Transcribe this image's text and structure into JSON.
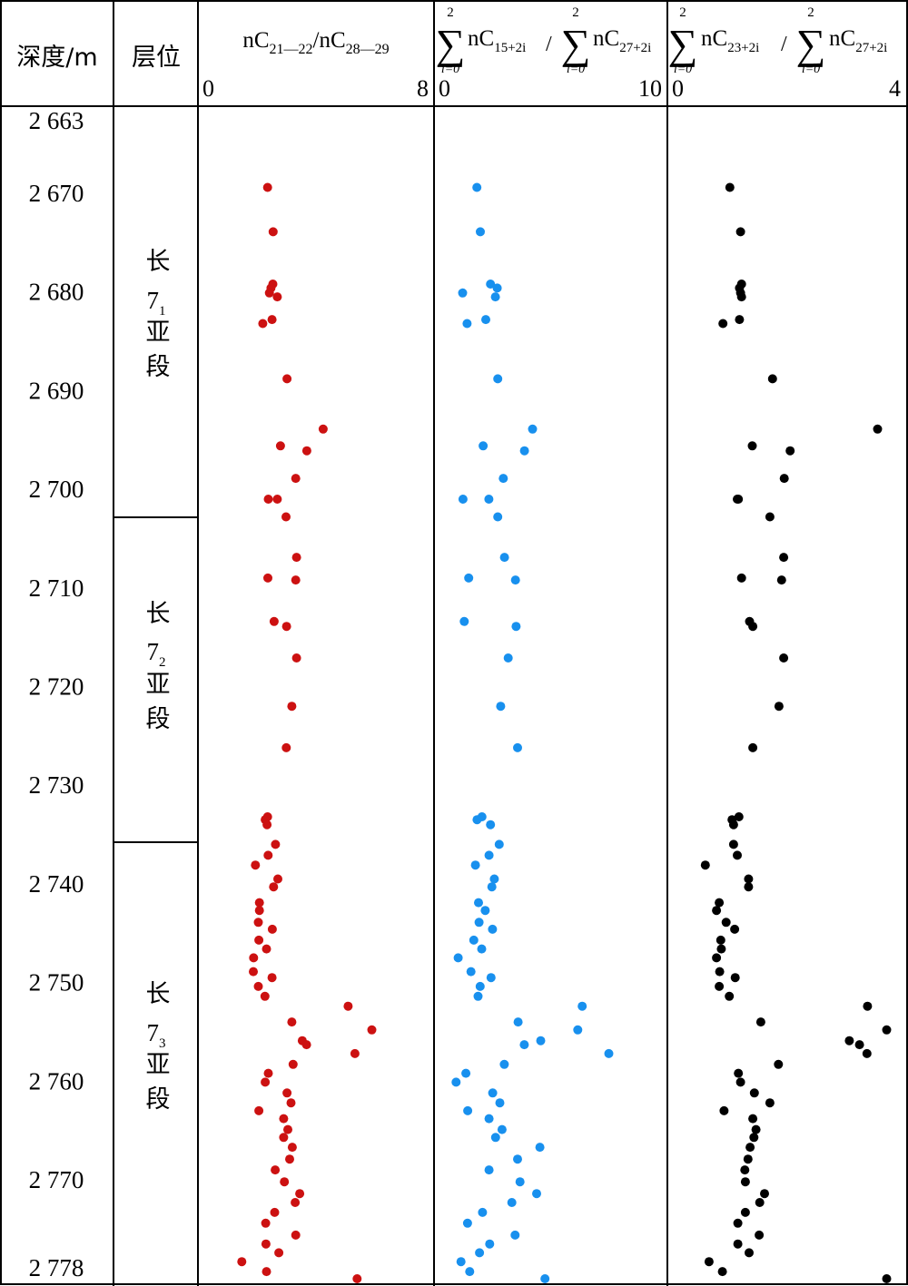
{
  "header": {
    "depth_label": "深度/m",
    "layer_label": "层位",
    "col1": {
      "pre": "nC",
      "sub1": "21—22",
      "mid": "/nC",
      "sub2": "28—29",
      "min_label": "0",
      "max_label": "8"
    },
    "col2": {
      "sum_sym": "∑",
      "sum_top": "2",
      "sum_bottom": "i=0",
      "num_base": "nC",
      "num_sub": "15+2i",
      "slash": "/",
      "den_base": "nC",
      "den_sub": "27+2i",
      "min_label": "0",
      "max_label": "10"
    },
    "col3": {
      "sum_sym": "∑",
      "sum_top": "2",
      "sum_bottom": "i=0",
      "num_base": "nC",
      "num_sub": "23+2i",
      "slash": "/",
      "den_base": "nC",
      "den_sub": "27+2i",
      "min_label": "0",
      "max_label": "4"
    }
  },
  "layers": [
    {
      "top": 2663,
      "bottom": 2703,
      "char1": "长",
      "main": "7",
      "sub": "1",
      "char3": "亚",
      "char4": "段"
    },
    {
      "top": 2703,
      "bottom": 2736,
      "char1": "长",
      "main": "7",
      "sub": "2",
      "char3": "亚",
      "char4": "段"
    },
    {
      "top": 2736,
      "bottom": 2778,
      "char1": "长",
      "main": "7",
      "sub": "3",
      "char3": "亚",
      "char4": "段"
    }
  ],
  "chart_data": {
    "type": "scatter",
    "depth_axis": {
      "min": 2663,
      "max": 2778,
      "inverted": true,
      "ticks": [
        2663,
        2670,
        2680,
        2690,
        2700,
        2710,
        2720,
        2730,
        2740,
        2750,
        2760,
        2770,
        2778
      ],
      "tick_labels": [
        "2 663",
        "2 670",
        "2 680",
        "2 690",
        "2 700",
        "2 710",
        "2 720",
        "2 730",
        "2 740",
        "2 750",
        "2 760",
        "2 770",
        "2 778"
      ]
    },
    "series": [
      {
        "x_range": [
          0,
          8
        ],
        "color": "#cc1111",
        "points": [
          [
            2669.4,
            2.23
          ],
          [
            2673.9,
            2.44
          ],
          [
            2679.2,
            2.43
          ],
          [
            2679.6,
            2.36
          ],
          [
            2680.1,
            2.3
          ],
          [
            2680.5,
            2.6
          ],
          [
            2682.8,
            2.4
          ],
          [
            2683.2,
            2.05
          ],
          [
            2688.8,
            2.97
          ],
          [
            2693.9,
            4.34
          ],
          [
            2695.6,
            2.72
          ],
          [
            2696.1,
            3.72
          ],
          [
            2698.9,
            3.3
          ],
          [
            2701.0,
            2.26
          ],
          [
            2701.0,
            2.6
          ],
          [
            2702.8,
            2.93
          ],
          [
            2706.9,
            3.33
          ],
          [
            2709.0,
            2.24
          ],
          [
            2709.2,
            3.3
          ],
          [
            2713.4,
            2.48
          ],
          [
            2713.9,
            2.95
          ],
          [
            2717.1,
            3.33
          ],
          [
            2722.0,
            3.15
          ],
          [
            2726.2,
            2.94
          ],
          [
            2733.5,
            2.14
          ],
          [
            2733.2,
            2.23
          ],
          [
            2734.0,
            2.21
          ],
          [
            2736.0,
            2.53
          ],
          [
            2737.1,
            2.25
          ],
          [
            2738.1,
            1.77
          ],
          [
            2739.5,
            2.62
          ],
          [
            2740.3,
            2.46
          ],
          [
            2741.9,
            1.92
          ],
          [
            2742.7,
            1.92
          ],
          [
            2743.9,
            1.88
          ],
          [
            2744.6,
            2.41
          ],
          [
            2745.7,
            1.9
          ],
          [
            2746.6,
            2.19
          ],
          [
            2747.5,
            1.7
          ],
          [
            2748.9,
            1.69
          ],
          [
            2749.5,
            2.4
          ],
          [
            2750.4,
            1.88
          ],
          [
            2751.4,
            2.13
          ],
          [
            2752.4,
            5.29
          ],
          [
            2754.0,
            3.15
          ],
          [
            2754.8,
            6.19
          ],
          [
            2755.9,
            3.55
          ],
          [
            2756.3,
            3.71
          ],
          [
            2757.2,
            5.55
          ],
          [
            2758.3,
            3.2
          ],
          [
            2759.2,
            2.26
          ],
          [
            2760.1,
            2.14
          ],
          [
            2761.2,
            2.97
          ],
          [
            2762.2,
            3.12
          ],
          [
            2763.0,
            1.9
          ],
          [
            2763.8,
            2.84
          ],
          [
            2764.9,
            3.0
          ],
          [
            2765.7,
            2.84
          ],
          [
            2766.7,
            3.17
          ],
          [
            2767.9,
            3.07
          ],
          [
            2769.0,
            2.52
          ],
          [
            2770.2,
            2.87
          ],
          [
            2771.4,
            3.45
          ],
          [
            2772.3,
            3.28
          ],
          [
            2773.3,
            2.5
          ],
          [
            2774.4,
            2.16
          ],
          [
            2775.6,
            3.3
          ],
          [
            2776.5,
            2.17
          ],
          [
            2777.4,
            2.66
          ],
          [
            2778.3,
            1.25
          ],
          [
            2779.3,
            2.19
          ],
          [
            2780.1,
            5.63
          ]
        ]
      },
      {
        "x_range": [
          0,
          10
        ],
        "color": "#1890ee",
        "points": [
          [
            2669.4,
            1.57
          ],
          [
            2673.9,
            1.74
          ],
          [
            2679.2,
            2.24
          ],
          [
            2679.6,
            2.57
          ],
          [
            2680.1,
            0.87
          ],
          [
            2680.5,
            2.48
          ],
          [
            2682.8,
            2.01
          ],
          [
            2683.2,
            1.09
          ],
          [
            2688.8,
            2.6
          ],
          [
            2693.9,
            4.31
          ],
          [
            2695.6,
            1.88
          ],
          [
            2696.1,
            3.91
          ],
          [
            2698.9,
            2.87
          ],
          [
            2701.0,
            0.89
          ],
          [
            2701.0,
            2.16
          ],
          [
            2702.8,
            2.6
          ],
          [
            2706.9,
            2.93
          ],
          [
            2709.0,
            1.17
          ],
          [
            2709.2,
            3.47
          ],
          [
            2713.4,
            0.95
          ],
          [
            2713.9,
            3.5
          ],
          [
            2717.1,
            3.11
          ],
          [
            2722.0,
            2.74
          ],
          [
            2726.2,
            3.57
          ],
          [
            2733.5,
            1.58
          ],
          [
            2733.2,
            1.82
          ],
          [
            2734.0,
            2.24
          ],
          [
            2736.0,
            2.67
          ],
          [
            2737.1,
            2.17
          ],
          [
            2738.1,
            1.5
          ],
          [
            2739.5,
            2.43
          ],
          [
            2740.3,
            2.31
          ],
          [
            2741.9,
            1.65
          ],
          [
            2742.7,
            1.98
          ],
          [
            2743.9,
            1.68
          ],
          [
            2744.6,
            2.34
          ],
          [
            2745.7,
            1.42
          ],
          [
            2746.6,
            1.81
          ],
          [
            2747.5,
            0.65
          ],
          [
            2748.9,
            1.28
          ],
          [
            2749.5,
            2.27
          ],
          [
            2750.4,
            1.73
          ],
          [
            2751.4,
            1.63
          ],
          [
            2752.4,
            6.75
          ],
          [
            2754.0,
            3.6
          ],
          [
            2754.8,
            6.53
          ],
          [
            2755.9,
            4.71
          ],
          [
            2756.3,
            3.9
          ],
          [
            2757.2,
            8.06
          ],
          [
            2758.3,
            2.92
          ],
          [
            2759.2,
            1.03
          ],
          [
            2760.1,
            0.55
          ],
          [
            2761.2,
            2.35
          ],
          [
            2762.2,
            2.7
          ],
          [
            2763.0,
            1.12
          ],
          [
            2763.8,
            2.17
          ],
          [
            2764.9,
            2.81
          ],
          [
            2765.7,
            2.49
          ],
          [
            2766.7,
            4.67
          ],
          [
            2767.9,
            3.57
          ],
          [
            2769.0,
            2.17
          ],
          [
            2770.2,
            3.69
          ],
          [
            2771.4,
            4.51
          ],
          [
            2772.3,
            3.29
          ],
          [
            2773.3,
            1.85
          ],
          [
            2774.4,
            1.11
          ],
          [
            2775.6,
            3.45
          ],
          [
            2776.5,
            2.2
          ],
          [
            2777.4,
            1.7
          ],
          [
            2778.3,
            0.79
          ],
          [
            2779.3,
            1.22
          ],
          [
            2780.1,
            4.92
          ]
        ]
      },
      {
        "x_range": [
          0,
          4
        ],
        "color": "#000000",
        "points": [
          [
            2669.4,
            0.95
          ],
          [
            2673.9,
            1.15
          ],
          [
            2679.2,
            1.17
          ],
          [
            2679.6,
            1.13
          ],
          [
            2680.1,
            1.15
          ],
          [
            2680.5,
            1.17
          ],
          [
            2682.8,
            1.13
          ],
          [
            2683.2,
            0.82
          ],
          [
            2688.8,
            1.75
          ],
          [
            2693.9,
            3.72
          ],
          [
            2695.6,
            1.37
          ],
          [
            2696.1,
            2.08
          ],
          [
            2698.9,
            1.97
          ],
          [
            2701.0,
            1.11
          ],
          [
            2701.0,
            1.09
          ],
          [
            2702.8,
            1.7
          ],
          [
            2706.9,
            1.96
          ],
          [
            2709.0,
            1.17
          ],
          [
            2709.2,
            1.92
          ],
          [
            2713.4,
            1.32
          ],
          [
            2713.9,
            1.38
          ],
          [
            2717.1,
            1.96
          ],
          [
            2722.0,
            1.87
          ],
          [
            2726.2,
            1.38
          ],
          [
            2733.5,
            0.99
          ],
          [
            2733.2,
            1.12
          ],
          [
            2734.0,
            1.02
          ],
          [
            2736.0,
            1.02
          ],
          [
            2737.1,
            1.09
          ],
          [
            2738.1,
            0.49
          ],
          [
            2739.5,
            1.3
          ],
          [
            2740.3,
            1.3
          ],
          [
            2741.9,
            0.75
          ],
          [
            2742.7,
            0.7
          ],
          [
            2743.9,
            0.88
          ],
          [
            2744.6,
            1.04
          ],
          [
            2745.7,
            0.78
          ],
          [
            2746.6,
            0.79
          ],
          [
            2747.5,
            0.7
          ],
          [
            2748.9,
            0.76
          ],
          [
            2749.5,
            1.05
          ],
          [
            2750.4,
            0.75
          ],
          [
            2751.4,
            0.94
          ],
          [
            2752.4,
            3.53
          ],
          [
            2754.0,
            1.53
          ],
          [
            2754.8,
            3.89
          ],
          [
            2755.9,
            3.19
          ],
          [
            2756.3,
            3.38
          ],
          [
            2757.2,
            3.52
          ],
          [
            2758.3,
            1.86
          ],
          [
            2759.2,
            1.11
          ],
          [
            2760.1,
            1.15
          ],
          [
            2761.2,
            1.41
          ],
          [
            2762.2,
            1.7
          ],
          [
            2763.0,
            0.84
          ],
          [
            2763.8,
            1.38
          ],
          [
            2764.9,
            1.44
          ],
          [
            2765.7,
            1.4
          ],
          [
            2766.7,
            1.33
          ],
          [
            2767.9,
            1.29
          ],
          [
            2769.0,
            1.23
          ],
          [
            2770.2,
            1.24
          ],
          [
            2771.4,
            1.6
          ],
          [
            2772.3,
            1.51
          ],
          [
            2773.3,
            1.24
          ],
          [
            2774.4,
            1.1
          ],
          [
            2775.6,
            1.5
          ],
          [
            2776.5,
            1.1
          ],
          [
            2777.4,
            1.31
          ],
          [
            2778.3,
            0.56
          ],
          [
            2779.3,
            0.81
          ],
          [
            2780.1,
            3.89
          ]
        ]
      }
    ]
  }
}
